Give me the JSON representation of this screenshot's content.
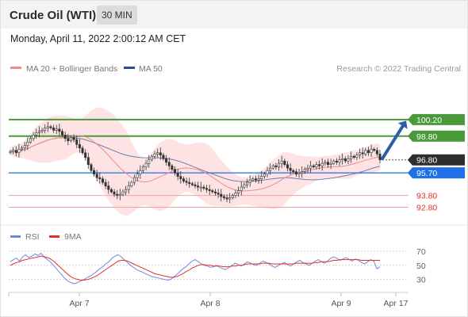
{
  "header": {
    "title": "Crude Oil (WTI)",
    "interval": "30 MIN"
  },
  "datetime": "Monday, April 11, 2022 2:00:12 AM CET",
  "credit": "Research © 2022 Trading Central",
  "colors": {
    "price_up": "#4a9a3c",
    "price_down": "#e0312a",
    "blue_level": "#1f6fe6",
    "dark_level": "#2e2e2e",
    "bollinger": "#fddcdc",
    "ma20": "#f28a8a",
    "ma50": "#5a6aa8",
    "arrow": "#2c5ea8",
    "rsi": "#6b8be0",
    "rsi_ma": "#e0312a"
  },
  "chart_data": [
    {
      "type": "candlestick",
      "title": "Crude Oil (WTI)",
      "legend": [
        "MA 20 + Bollinger Bands",
        "MA 50"
      ],
      "legend_placement": "top-left",
      "ylim": [
        91.9,
        103.6
      ],
      "x_ticks": [
        "Apr 7",
        "Apr 8",
        "Apr 9",
        "Apr 17"
      ],
      "close_series": [
        97.5,
        97.6,
        97.4,
        97.7,
        97.8,
        98.0,
        98.3,
        98.6,
        98.9,
        99.1,
        99.2,
        99.3,
        99.5,
        99.6,
        99.5,
        99.3,
        99.4,
        99.2,
        98.9,
        98.6,
        98.4,
        98.7,
        98.5,
        98.1,
        97.8,
        97.4,
        97.0,
        96.4,
        95.9,
        95.6,
        95.3,
        95.2,
        94.9,
        94.6,
        94.3,
        94.1,
        93.9,
        93.8,
        93.9,
        94.1,
        94.3,
        94.6,
        94.9,
        95.3,
        95.6,
        95.9,
        96.2,
        96.5,
        96.8,
        97.1,
        97.3,
        97.4,
        97.2,
        96.9,
        96.6,
        96.3,
        96.0,
        95.7,
        95.4,
        95.2,
        95.0,
        94.9,
        94.8,
        94.7,
        94.6,
        94.5,
        94.5,
        94.4,
        94.3,
        94.2,
        94.1,
        94.0,
        93.9,
        93.7,
        93.6,
        93.5,
        93.6,
        93.8,
        94.0,
        94.2,
        94.5,
        94.7,
        94.9,
        95.1,
        95.2,
        95.1,
        95.2,
        95.4,
        95.6,
        95.9,
        96.1,
        96.3,
        96.2,
        96.5,
        96.7,
        96.4,
        96.1,
        95.9,
        95.8,
        95.6,
        95.7,
        95.8,
        96.0,
        96.1,
        96.3,
        96.2,
        96.4,
        96.3,
        96.5,
        96.6,
        96.4,
        96.5,
        96.7,
        96.6,
        96.8,
        96.9,
        96.7,
        96.9,
        97.1,
        97.0,
        97.2,
        97.4,
        97.3,
        97.6,
        97.4,
        97.7,
        97.6,
        97.3,
        96.8
      ],
      "levels": [
        {
          "label": "100.20",
          "value": 100.2,
          "style": "resistance"
        },
        {
          "label": "98.80",
          "value": 98.8,
          "style": "resistance"
        },
        {
          "label": "96.80",
          "value": 96.8,
          "style": "current"
        },
        {
          "label": "95.70",
          "value": 95.7,
          "style": "pivot"
        },
        {
          "label": "93.80",
          "value": 93.8,
          "style": "support"
        },
        {
          "label": "92.80",
          "value": 92.8,
          "style": "support"
        }
      ],
      "forecast_arrow": {
        "from": 96.9,
        "to": 100.1
      }
    },
    {
      "type": "line",
      "title": "RSI",
      "legend": [
        "RSI",
        "9MA"
      ],
      "legend_placement": "top-left",
      "ylim": [
        15,
        80
      ],
      "yticks": [
        "70",
        "50",
        "30"
      ],
      "guides": [
        70,
        50,
        30
      ],
      "rsi": [
        55,
        58,
        60,
        56,
        62,
        65,
        61,
        63,
        66,
        64,
        67,
        62,
        58,
        55,
        50,
        45,
        40,
        35,
        30,
        27,
        25,
        24,
        26,
        28,
        30,
        33,
        35,
        38,
        41,
        45,
        48,
        52,
        55,
        60,
        63,
        65,
        62,
        58,
        54,
        50,
        47,
        44,
        42,
        40,
        38,
        36,
        34,
        33,
        32,
        31,
        30,
        29,
        30,
        33,
        37,
        41,
        45,
        48,
        52,
        56,
        58,
        55,
        52,
        50,
        49,
        47,
        48,
        50,
        47,
        45,
        44,
        47,
        50,
        53,
        51,
        49,
        52,
        55,
        53,
        51,
        50,
        53,
        56,
        54,
        52,
        49,
        47,
        50,
        52,
        54,
        51,
        49,
        52,
        55,
        57,
        54,
        52,
        50,
        53,
        56,
        58,
        55,
        53,
        56,
        60,
        62,
        60,
        57,
        59,
        61,
        58,
        56,
        59,
        57,
        54,
        52,
        55,
        58,
        56,
        45,
        48
      ],
      "rsi_ma": [
        50,
        52,
        54,
        55,
        57,
        58,
        59,
        60,
        61,
        62,
        63,
        62,
        61,
        59,
        56,
        52,
        48,
        44,
        40,
        36,
        33,
        31,
        30,
        29,
        29,
        30,
        31,
        33,
        35,
        38,
        41,
        44,
        47,
        50,
        53,
        56,
        57,
        57,
        56,
        54,
        52,
        50,
        48,
        46,
        44,
        42,
        40,
        38,
        37,
        36,
        35,
        34,
        33,
        33,
        34,
        36,
        38,
        41,
        43,
        46,
        48,
        50,
        51,
        51,
        50,
        50,
        49,
        49,
        49,
        48,
        48,
        48,
        49,
        49,
        50,
        50,
        51,
        52,
        52,
        52,
        52,
        52,
        53,
        53,
        53,
        52,
        52,
        52,
        52,
        52,
        52,
        52,
        52,
        53,
        53,
        53,
        53,
        53,
        53,
        54,
        54,
        55,
        55,
        55,
        56,
        57,
        57,
        58,
        58,
        58,
        58,
        58,
        58,
        58,
        57,
        57,
        57,
        57,
        57,
        57,
        57
      ]
    }
  ]
}
